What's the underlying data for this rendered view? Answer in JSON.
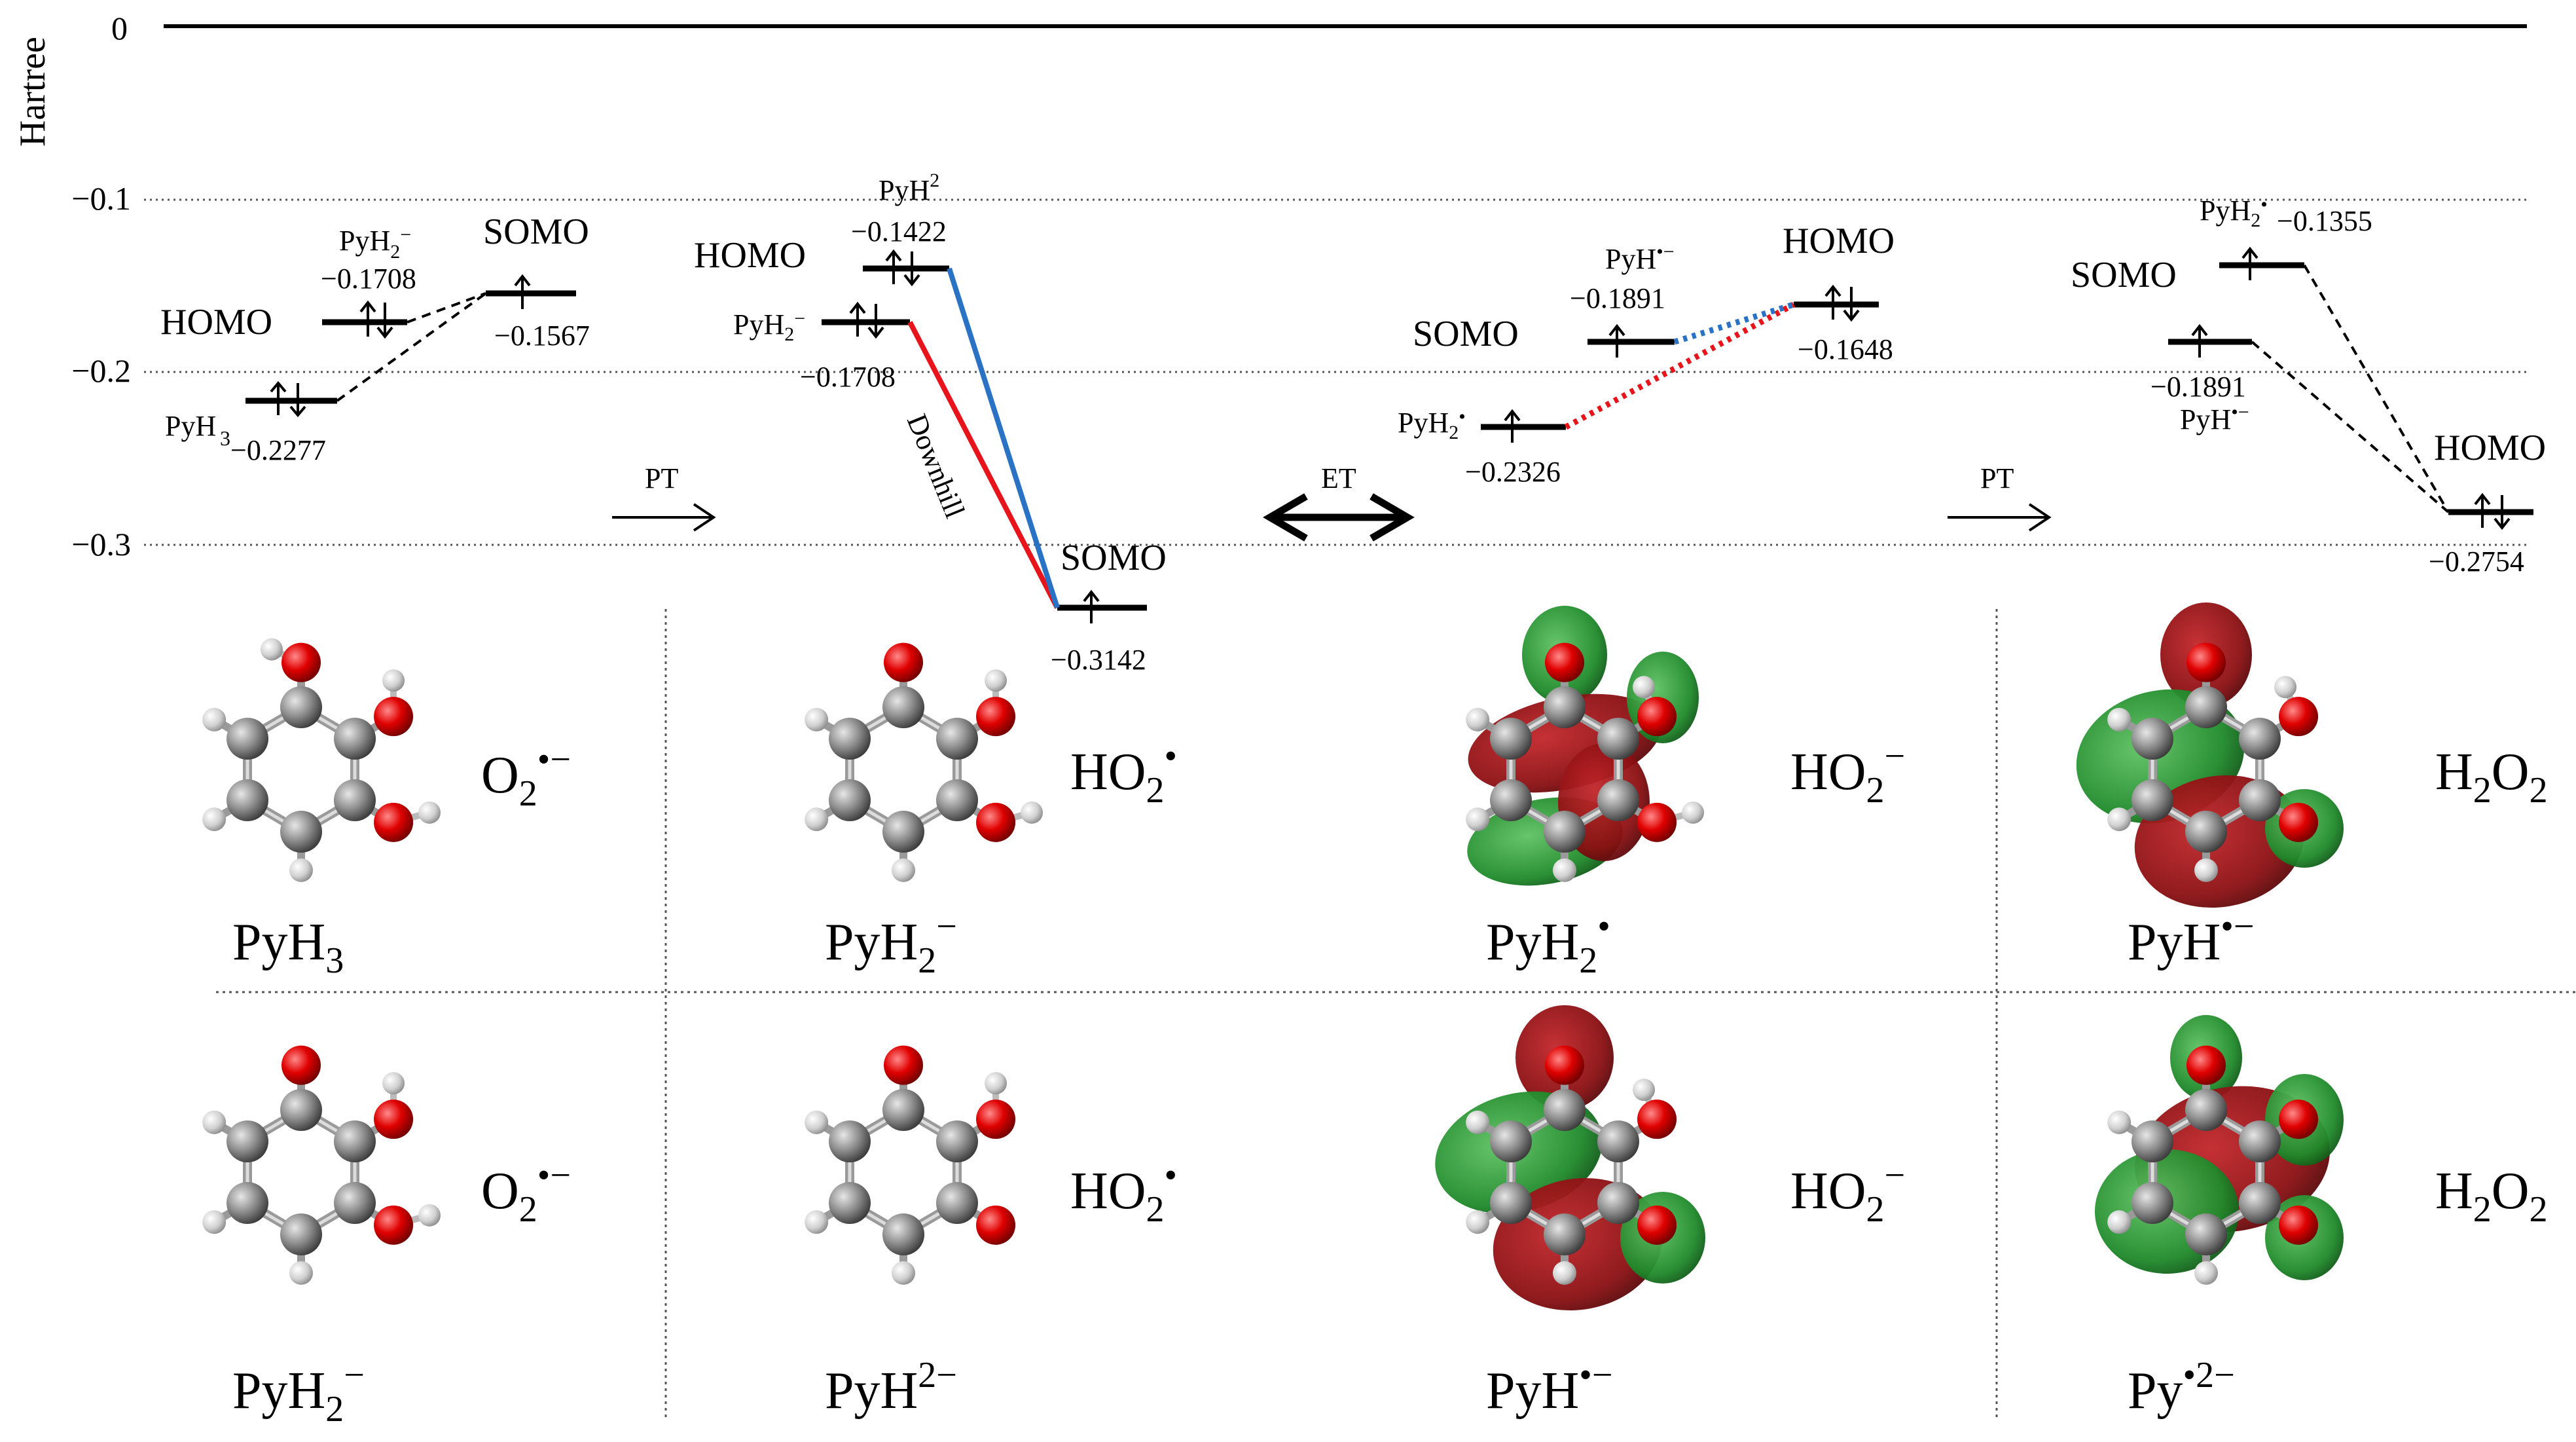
{
  "axis": {
    "unit": "Hartree",
    "ticks": [
      "0",
      "−0.1",
      "−0.2",
      "−0.3"
    ]
  },
  "diagram_levels": {
    "pyh3_homo": {
      "species": "PyH3",
      "energy": "−0.2277"
    },
    "pyh2m_homo_1": {
      "species": "PyH2−",
      "energy": "−0.1708",
      "label": "HOMO"
    },
    "o2_somo": {
      "energy": "−0.1567",
      "label": "SOMO"
    },
    "pyh2m_homo_2": {
      "species": "PyH2−",
      "energy": "−0.1708"
    },
    "pyh2dm_homo": {
      "species": "PyH2−",
      "energy": "−0.1422",
      "label": "HOMO"
    },
    "ho2_somo": {
      "energy": "−0.3142",
      "label": "SOMO"
    },
    "pyh2rad_somo": {
      "species": "PyH2•",
      "energy": "−0.2326"
    },
    "pyhrad_somo": {
      "species": "PyH•−",
      "energy": "−0.1891",
      "label": "SOMO"
    },
    "ho2m_homo": {
      "energy": "−0.1648",
      "label": "HOMO"
    },
    "pyhrad_somo_2": {
      "species": "PyH•−",
      "energy": "−0.1891"
    },
    "pyh2rad_somo_2": {
      "species": "PyH2•",
      "energy": "−0.1355",
      "label": "SOMO"
    },
    "h2o2_homo": {
      "energy": "−0.2754",
      "label": "HOMO"
    }
  },
  "labels": {
    "pyh3_prefix": "PyH",
    "pyh3_sub": "3",
    "pyh2_prefix": "PyH",
    "pyh2_sub": "2",
    "pyh2m_sup": "−",
    "pyh2rad_sup": "•",
    "pyh_prefix": "PyH",
    "pyh_sup": "•−",
    "pyh2_minus_label_prefix": "PyH",
    "pyh2dm_sup": "2−",
    "py_prefix": "Py",
    "py_sup": "•2−",
    "pt": "PT",
    "et": "ET",
    "downhill": "Downhill",
    "homo": "HOMO",
    "somo": "SOMO"
  },
  "species": {
    "o2_base": "O",
    "o2_sub": "2",
    "o2_sup": "•−",
    "ho2_base": "HO",
    "ho2_sub": "2",
    "ho2rad_sup": "•",
    "ho2m_sup": "−",
    "h2o2_h": "H",
    "h2o2_sub1": "2",
    "h2o2_o": "O",
    "h2o2_sub2": "2"
  },
  "row1_names": [
    "PyH3",
    "PyH2−",
    "PyH2•",
    "PyH•−"
  ],
  "row2_names": [
    "PyH2−",
    "PyH2−",
    "PyH•−",
    "Py•2−"
  ],
  "colors": {
    "axis": "#000000",
    "grid": "#555555",
    "red_line": "#e8141b",
    "blue_line": "#2a72c4",
    "carbon": "#8a8a8a",
    "oxygen": "#e00000",
    "hydrogen": "#d8d8d8",
    "orbital_red": "#8a0f12",
    "orbital_green": "#1f8a2a"
  }
}
